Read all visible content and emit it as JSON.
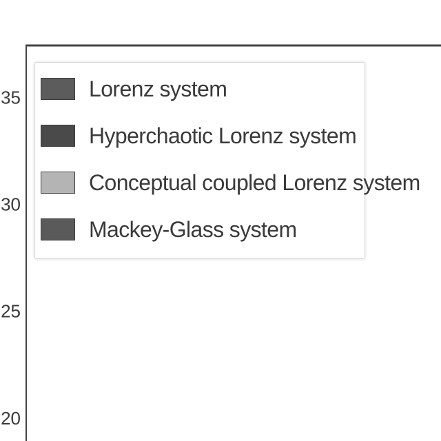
{
  "chart_data": {
    "type": "bar",
    "title": "",
    "xlabel": "",
    "ylabel": "",
    "ylim": [
      19,
      37.5
    ],
    "yticks": [
      "20",
      "25",
      "30",
      "35"
    ],
    "grid": false,
    "legend_position": "top-left",
    "series": [
      {
        "name": "Lorenz system",
        "color": "#5c5c5c"
      },
      {
        "name": "Hyperchaotic Lorenz system",
        "color": "#4a4a4a"
      },
      {
        "name": "Conceptual coupled Lorenz system",
        "color": "#b4b4b4"
      },
      {
        "name": "Mackey-Glass system",
        "color": "#5a5a5a"
      }
    ]
  }
}
